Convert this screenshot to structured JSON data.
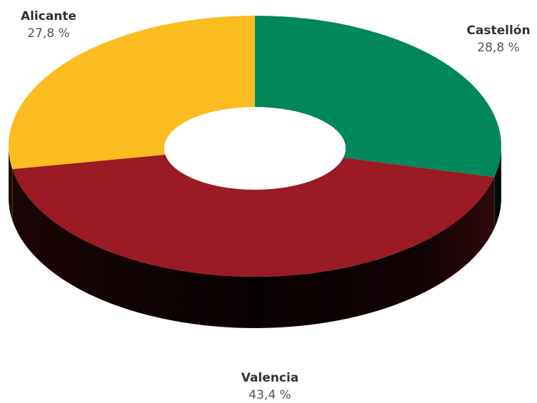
{
  "chart_data": {
    "type": "pie",
    "variant": "3d-donut",
    "series": [
      {
        "name": "Castellón",
        "value": 28.8,
        "label": "28,8 %",
        "color": "#00875a"
      },
      {
        "name": "Valencia",
        "value": 43.4,
        "label": "43,4 %",
        "color": "#9a1b24"
      },
      {
        "name": "Alicante",
        "value": 27.8,
        "label": "27,8 %",
        "color": "#fbbc1f"
      }
    ],
    "start_angle": "top (12 o'clock)",
    "direction": "clockwise"
  }
}
